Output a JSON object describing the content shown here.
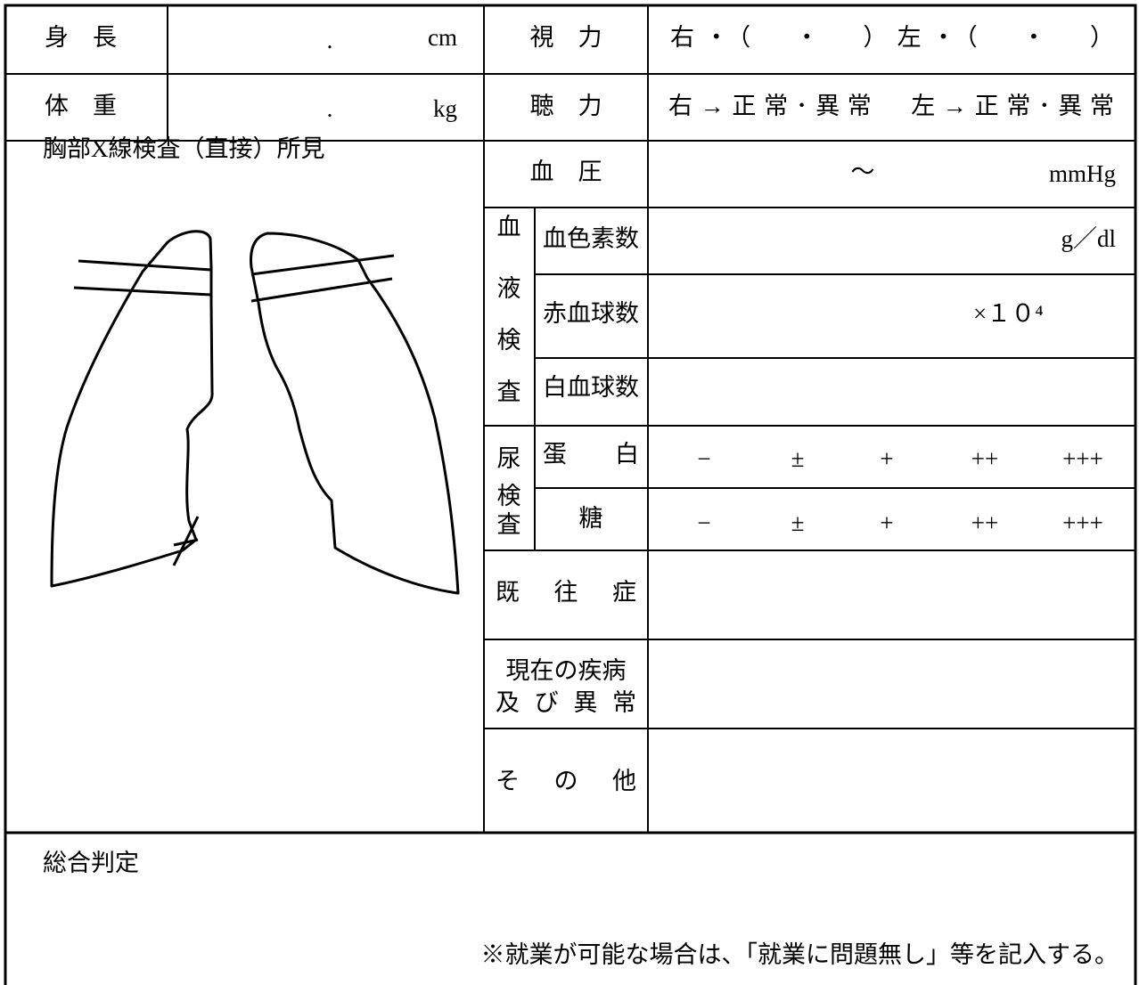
{
  "height": {
    "label": "身　長",
    "separator": ".",
    "unit": "cm"
  },
  "weight": {
    "label": "体　重",
    "separator": ".",
    "unit": "kg"
  },
  "vision": {
    "label": "視　力",
    "value": "右・（　・　）左・（　・　）"
  },
  "hearing": {
    "label": "聴　力",
    "value": "右→正常･異常　左→正常･異常"
  },
  "xray": {
    "label": "胸部X線検査（直接）所見"
  },
  "blood_pressure": {
    "label": "血　圧",
    "separator": "～",
    "unit": "mmHg"
  },
  "blood_test": {
    "label_chars": [
      "血",
      "液",
      "検",
      "査"
    ],
    "items": [
      {
        "label": "血色素数",
        "unit": "g／dl"
      },
      {
        "label": "赤血球数",
        "unit": "×１０⁴"
      },
      {
        "label": "白血球数"
      }
    ]
  },
  "urine_test": {
    "label_chars": [
      "尿",
      "検",
      "査"
    ],
    "items": [
      {
        "label": "蛋　　白",
        "options": [
          "−",
          "±",
          "+",
          "++",
          "+++"
        ]
      },
      {
        "label": "糖",
        "options": [
          "−",
          "±",
          "+",
          "++",
          "+++"
        ]
      }
    ]
  },
  "history": {
    "label": "既　往　症"
  },
  "current": {
    "label_lines": [
      "現在の疾病",
      "及 び 異 常"
    ]
  },
  "other": {
    "label": "そ　の　他"
  },
  "overall": {
    "label": "総合判定",
    "note": "※就業が可能な場合は、「就業に問題無し」等を記入する。"
  }
}
